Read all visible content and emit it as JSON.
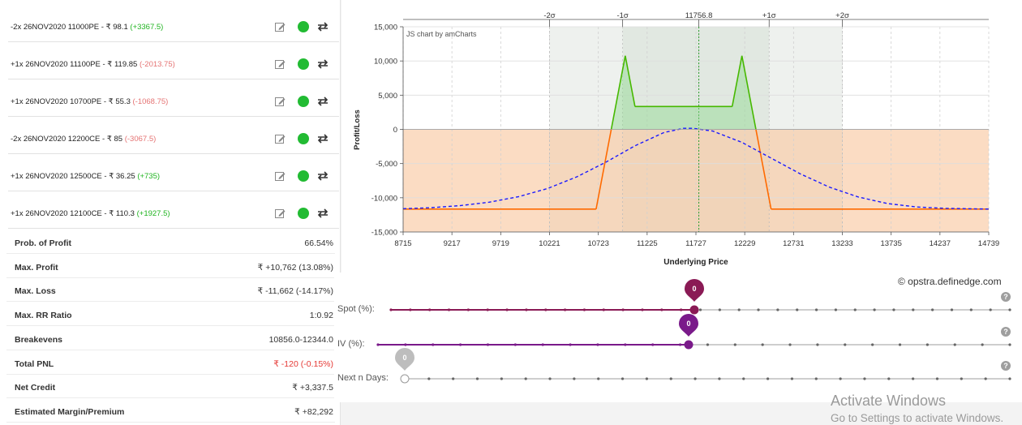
{
  "legs": [
    {
      "desc": "-2x 26NOV2020 11000PE - ₹ 98.1",
      "pnl": "(+3367.5)",
      "pnl_color": "#21b521"
    },
    {
      "desc": "+1x 26NOV2020 11100PE - ₹ 119.85",
      "pnl": "(-2013.75)",
      "pnl_color": "#e57373"
    },
    {
      "desc": "+1x 26NOV2020 10700PE - ₹ 55.3",
      "pnl": "(-1068.75)",
      "pnl_color": "#e57373"
    },
    {
      "desc": "-2x 26NOV2020 12200CE - ₹ 85",
      "pnl": "(-3067.5)",
      "pnl_color": "#e57373"
    },
    {
      "desc": "+1x 26NOV2020 12500CE - ₹ 36.25",
      "pnl": "(+735)",
      "pnl_color": "#21b521"
    },
    {
      "desc": "+1x 26NOV2020 12100CE - ₹ 110.3",
      "pnl": "(+1927.5)",
      "pnl_color": "#21b521"
    }
  ],
  "stats": [
    {
      "label": "Prob. of Profit",
      "value": "66.54%"
    },
    {
      "label": "Max. Profit",
      "value": "₹ +10,762 (13.08%)"
    },
    {
      "label": "Max. Loss",
      "value": "₹ -11,662 (-14.17%)"
    },
    {
      "label": "Max. RR Ratio",
      "value": "1:0.92"
    },
    {
      "label": "Breakevens",
      "value": "10856.0-12344.0"
    },
    {
      "label": "Total PNL",
      "value": "₹ -120 (-0.15%)",
      "highlight": "red"
    },
    {
      "label": "Net Credit",
      "value": "₹ +3,337.5"
    },
    {
      "label": "Estimated Margin/Premium",
      "value": "₹ +82,292"
    }
  ],
  "chart": {
    "watermark": "JS chart by amCharts",
    "credit": "© opstra.definedge.com"
  },
  "chart_data": {
    "type": "line",
    "xlabel": "Underlying Price",
    "ylabel": "Profit/Loss",
    "xlim": [
      8715,
      14739
    ],
    "ylim": [
      -15000,
      15000
    ],
    "x_ticks": [
      "8715",
      "9217",
      "9719",
      "10221",
      "10723",
      "11225",
      "11727",
      "12229",
      "12731",
      "13233",
      "13735",
      "14237",
      "14739"
    ],
    "y_ticks": [
      "15,000",
      "10,000",
      "5,000",
      "0",
      "-5,000",
      "-10,000",
      "-15,000"
    ],
    "sigma_labels": [
      {
        "label": "-2σ",
        "x": 10221
      },
      {
        "label": "-1σ",
        "x": 10973
      },
      {
        "label": "11756.8",
        "x": 11756.8
      },
      {
        "label": "+1σ",
        "x": 12480
      },
      {
        "label": "+2σ",
        "x": 13233
      }
    ],
    "sigma_bands": {
      "two_sigma": [
        10221,
        13233
      ],
      "one_sigma": [
        10973,
        12480
      ]
    },
    "spot": 11756.8,
    "series": [
      {
        "color": "#ff6a00",
        "profit_color": "#46b800",
        "x": [
          8715,
          10700,
          11000,
          11100,
          12100,
          12200,
          12500,
          14739
        ],
        "y": [
          -11662,
          -11662,
          10762,
          3337.5,
          3337.5,
          10762,
          -11662,
          -11662
        ]
      },
      {
        "color": "#1a1aff",
        "style": "dashed",
        "x": [
          8715,
          9000,
          9300,
          9600,
          9900,
          10200,
          10500,
          10800,
          11100,
          11400,
          11600,
          11700,
          11900,
          12200,
          12500,
          12800,
          13100,
          13400,
          13700,
          14000,
          14300,
          14739
        ],
        "y": [
          -11600,
          -11450,
          -11150,
          -10650,
          -9850,
          -8650,
          -6950,
          -4800,
          -2400,
          -450,
          150,
          150,
          -250,
          -1900,
          -4200,
          -6500,
          -8450,
          -9900,
          -10850,
          -11350,
          -11550,
          -11650
        ]
      }
    ]
  },
  "sliders": [
    {
      "label": "Spot (%):",
      "value": "0",
      "color": "#8a1a55",
      "help": "?"
    },
    {
      "label": "IV (%):",
      "value": "0",
      "color": "#7a1a8a",
      "help": "?"
    },
    {
      "label": "Next n Days:",
      "value": "0",
      "color": "#bdbdbd",
      "help": "?"
    }
  ],
  "watermark": {
    "title": "Activate Windows",
    "subtitle": "Go to Settings to activate Windows."
  }
}
